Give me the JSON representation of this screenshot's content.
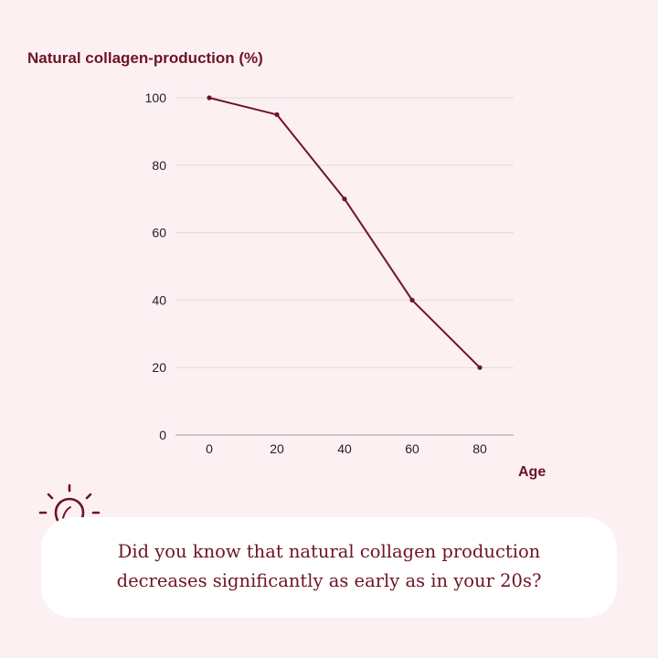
{
  "chart_data": {
    "type": "line",
    "title": "Natural collagen-production (%)",
    "xlabel": "Age",
    "ylabel": "",
    "x": [
      0,
      20,
      40,
      60,
      80
    ],
    "series": [
      {
        "values": [
          100,
          95,
          70,
          40,
          20
        ]
      }
    ],
    "xlim": [
      -10,
      90
    ],
    "ylim": [
      0,
      100
    ],
    "yticks": [
      0,
      20,
      40,
      60,
      80,
      100
    ],
    "xticks": [
      0,
      20,
      40,
      60,
      80
    ],
    "grid": true,
    "legend": "none"
  },
  "fact": {
    "line1": "Did you know that natural collagen production",
    "line2": "decreases significantly as early as in your 20s?"
  },
  "colors": {
    "accent": "#6e1423",
    "background": "#fcf0f3",
    "card": "#ffffff",
    "grid": "#e3d7da"
  },
  "icons": {
    "fact_icon": "lightbulb-icon"
  }
}
